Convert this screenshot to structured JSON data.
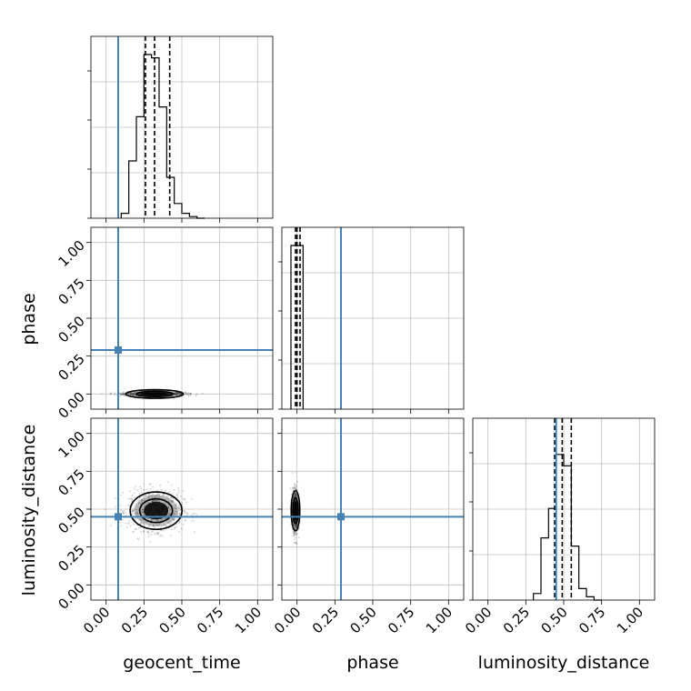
{
  "chart_data": {
    "type": "corner",
    "parameters": [
      "geocent_time",
      "phase",
      "luminosity_distance"
    ],
    "injection": {
      "geocent_time": 0.08,
      "phase": 0.29,
      "luminosity_distance": 0.45
    },
    "tick_labels": [
      "0.00",
      "0.25",
      "0.50",
      "0.75",
      "1.00"
    ],
    "xlim": [
      -0.1,
      1.1
    ],
    "ylim": [
      -0.1,
      1.1
    ],
    "colors": {
      "injection": "#4682b4",
      "histogram": "#000000",
      "grid": "#c0c0c0"
    },
    "grid": true,
    "histograms": {
      "geocent_time": {
        "bin_edges": [
          0.1,
          0.15,
          0.2,
          0.25,
          0.3,
          0.35,
          0.4,
          0.45,
          0.5,
          0.55,
          0.6,
          0.65
        ],
        "counts": [
          0.03,
          0.35,
          0.62,
          1.0,
          0.98,
          0.68,
          0.25,
          0.09,
          0.03,
          0.01,
          0.0
        ],
        "quantiles": [
          0.26,
          0.32,
          0.42
        ]
      },
      "phase": {
        "bin_edges": [
          -0.04,
          0.0,
          0.04
        ],
        "counts": [
          1.0,
          1.0
        ],
        "quantiles": [
          -0.01,
          0.0,
          0.02
        ]
      },
      "luminosity_distance": {
        "bin_edges": [
          0.3,
          0.35,
          0.4,
          0.45,
          0.5,
          0.55,
          0.6,
          0.65,
          0.7,
          0.75
        ],
        "counts": [
          0.04,
          0.38,
          0.56,
          0.89,
          0.82,
          0.33,
          0.07,
          0.02,
          0.0
        ],
        "quantiles": [
          0.44,
          0.49,
          0.55
        ]
      }
    },
    "posterior_2d": {
      "geocent_time_vs_phase": {
        "center": [
          0.32,
          0.0
        ],
        "spread": [
          0.1,
          0.006
        ]
      },
      "geocent_time_vs_luminosity_distance": {
        "center": [
          0.33,
          0.49
        ],
        "spread": [
          0.09,
          0.065
        ]
      },
      "phase_vs_luminosity_distance": {
        "center": [
          -0.01,
          0.49
        ],
        "spread": [
          0.01,
          0.07
        ]
      }
    }
  }
}
